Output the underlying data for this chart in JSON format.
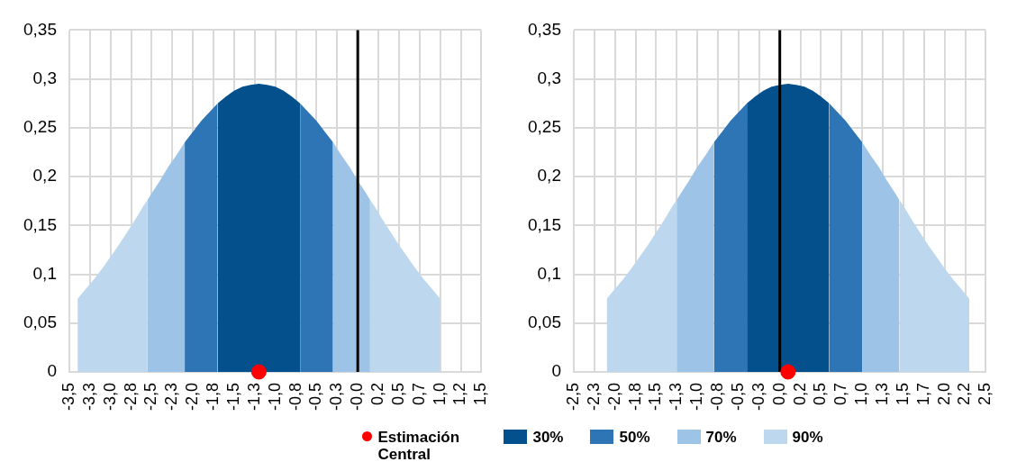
{
  "chart_data": [
    {
      "type": "area",
      "xlim": [
        -3.5,
        1.5
      ],
      "xticks": [
        {
          "value": -3.5,
          "label": "-3,5"
        },
        {
          "value": -3.25,
          "label": "-3,3"
        },
        {
          "value": -3,
          "label": "-3,0"
        },
        {
          "value": -2.75,
          "label": "-2,8"
        },
        {
          "value": -2.5,
          "label": "-2,5"
        },
        {
          "value": -2.25,
          "label": "-2,3"
        },
        {
          "value": -2,
          "label": "-2,0"
        },
        {
          "value": -1.75,
          "label": "-1,8"
        },
        {
          "value": -1.5,
          "label": "-1,5"
        },
        {
          "value": -1.25,
          "label": "-1,3"
        },
        {
          "value": -1,
          "label": "-1,0"
        },
        {
          "value": -0.75,
          "label": "-0,8"
        },
        {
          "value": -0.5,
          "label": "-0,5"
        },
        {
          "value": -0.25,
          "label": "-0,3"
        },
        {
          "value": 0,
          "label": "-0,0"
        },
        {
          "value": 0.25,
          "label": "0,2"
        },
        {
          "value": 0.5,
          "label": "0,5"
        },
        {
          "value": 0.75,
          "label": "0,7"
        },
        {
          "value": 1,
          "label": "1,0"
        },
        {
          "value": 1.25,
          "label": "1,2"
        },
        {
          "value": 1.5,
          "label": "1,5"
        }
      ],
      "ylim": [
        0,
        0.35
      ],
      "yticks": [
        0,
        {
          "value": 0.05,
          "label": "0,05"
        },
        {
          "value": 0.1,
          "label": "0,1"
        },
        {
          "value": 0.15,
          "label": "0,15"
        },
        {
          "value": 0.2,
          "label": "0,2"
        },
        {
          "value": 0.25,
          "label": "0,25"
        },
        {
          "value": 0.3,
          "label": "0,3"
        },
        {
          "value": 0.35,
          "label": "0,35"
        }
      ],
      "grid": true,
      "legend": "bottom",
      "ref_lines": [
        {
          "axis": "x",
          "value": 0,
          "color": "#000000"
        }
      ],
      "series": [
        {
          "name": "30%",
          "color": "#03508c",
          "x": [
            -1.7,
            -1.6,
            -1.5,
            -1.4,
            -1.3,
            -1.2,
            -1.1,
            -1.0,
            -0.9,
            -0.8,
            -0.7
          ],
          "values": [
            0.275,
            0.282,
            0.288,
            0.292,
            0.294,
            0.295,
            0.294,
            0.292,
            0.288,
            0.282,
            0.275
          ]
        },
        {
          "name": "50%",
          "color": "#2e75b5",
          "x": [
            -2.1,
            -2.0,
            -1.9,
            -1.8,
            -1.7,
            -1.2,
            -0.7,
            -0.6,
            -0.5,
            -0.4,
            -0.3
          ],
          "values": [
            0.235,
            0.246,
            0.257,
            0.266,
            0.275,
            null,
            0.275,
            0.266,
            0.257,
            0.246,
            0.235
          ]
        },
        {
          "name": "70%",
          "color": "#9dc3e6",
          "x": [
            -2.55,
            -2.5,
            -2.4,
            -2.3,
            -2.2,
            -2.1,
            -1.2,
            -0.3,
            -0.2,
            -0.1,
            0.0,
            0.1,
            0.15
          ],
          "values": [
            0.176,
            0.183,
            0.196,
            0.21,
            0.222,
            0.235,
            null,
            0.235,
            0.222,
            0.21,
            0.196,
            0.183,
            0.176
          ]
        },
        {
          "name": "90%",
          "color": "#bdd7ee",
          "x": [
            -3.4,
            -3.3,
            -3.2,
            -3.1,
            -3.0,
            -2.9,
            -2.8,
            -2.7,
            -2.6,
            -2.55,
            -1.2,
            0.15,
            0.2,
            0.3,
            0.4,
            0.5,
            0.6,
            0.7,
            0.8,
            0.9,
            1.0
          ],
          "values": [
            0.075,
            0.085,
            0.095,
            0.106,
            0.118,
            0.13,
            0.143,
            0.156,
            0.17,
            0.176,
            null,
            0.176,
            0.17,
            0.156,
            0.143,
            0.13,
            0.118,
            0.106,
            0.095,
            0.085,
            0.075
          ]
        },
        {
          "name": "Estimación Central",
          "type": "scatter",
          "color": "#ff0000",
          "x": [
            -1.2
          ],
          "values": [
            0
          ]
        }
      ]
    },
    {
      "type": "area",
      "xlim": [
        -2.5,
        2.5
      ],
      "xticks": [
        {
          "value": -2.5,
          "label": "-2,5"
        },
        {
          "value": -2.25,
          "label": "-2,3"
        },
        {
          "value": -2,
          "label": "-2,0"
        },
        {
          "value": -1.75,
          "label": "-1,8"
        },
        {
          "value": -1.5,
          "label": "-1,5"
        },
        {
          "value": -1.25,
          "label": "-1,3"
        },
        {
          "value": -1,
          "label": "-1,0"
        },
        {
          "value": -0.75,
          "label": "-0,8"
        },
        {
          "value": -0.5,
          "label": "-0,5"
        },
        {
          "value": -0.25,
          "label": "-0,3"
        },
        {
          "value": 0,
          "label": "0,0"
        },
        {
          "value": 0.25,
          "label": "0,2"
        },
        {
          "value": 0.5,
          "label": "0,5"
        },
        {
          "value": 0.75,
          "label": "0,7"
        },
        {
          "value": 1,
          "label": "1,0"
        },
        {
          "value": 1.25,
          "label": "1,3"
        },
        {
          "value": 1.5,
          "label": "1,5"
        },
        {
          "value": 1.75,
          "label": "1,7"
        },
        {
          "value": 2,
          "label": "2,0"
        },
        {
          "value": 2.25,
          "label": "2,2"
        },
        {
          "value": 2.5,
          "label": "2,5"
        }
      ],
      "ylim": [
        0,
        0.35
      ],
      "yticks": [
        0,
        {
          "value": 0.05,
          "label": "0,05"
        },
        {
          "value": 0.1,
          "label": "0,1"
        },
        {
          "value": 0.15,
          "label": "0,15"
        },
        {
          "value": 0.2,
          "label": "0,2"
        },
        {
          "value": 0.25,
          "label": "0,25"
        },
        {
          "value": 0.3,
          "label": "0,3"
        },
        {
          "value": 0.35,
          "label": "0,35"
        }
      ],
      "grid": true,
      "ref_lines": [
        {
          "axis": "x",
          "value": 0,
          "color": "#000000"
        }
      ],
      "series": [
        {
          "color": "#03508c",
          "x": [
            -0.4,
            -0.3,
            -0.2,
            -0.1,
            0.0,
            0.1,
            0.2,
            0.3,
            0.4,
            0.5,
            0.6
          ],
          "values": [
            0.275,
            0.282,
            0.288,
            0.292,
            0.294,
            0.295,
            0.294,
            0.292,
            0.288,
            0.282,
            0.275
          ]
        },
        {
          "color": "#2e75b5",
          "x": [
            -0.8,
            -0.7,
            -0.6,
            -0.5,
            -0.4,
            0.1,
            0.6,
            0.7,
            0.8,
            0.9,
            1.0
          ],
          "values": [
            0.235,
            0.246,
            0.257,
            0.266,
            0.275,
            null,
            0.275,
            0.266,
            0.257,
            0.246,
            0.235
          ]
        },
        {
          "color": "#9dc3e6",
          "x": [
            -1.25,
            -1.2,
            -1.1,
            -1.0,
            -0.9,
            -0.8,
            0.1,
            1.0,
            1.1,
            1.2,
            1.3,
            1.4,
            1.45
          ],
          "values": [
            0.176,
            0.183,
            0.196,
            0.21,
            0.222,
            0.235,
            null,
            0.235,
            0.222,
            0.21,
            0.196,
            0.183,
            0.176
          ]
        },
        {
          "color": "#bdd7ee",
          "x": [
            -2.1,
            -2.0,
            -1.9,
            -1.8,
            -1.7,
            -1.6,
            -1.5,
            -1.4,
            -1.3,
            -1.25,
            0.1,
            1.45,
            1.5,
            1.6,
            1.7,
            1.8,
            1.9,
            2.0,
            2.1,
            2.2,
            2.3
          ],
          "values": [
            0.075,
            0.085,
            0.095,
            0.106,
            0.118,
            0.13,
            0.143,
            0.156,
            0.17,
            0.176,
            null,
            0.176,
            0.17,
            0.156,
            0.143,
            0.13,
            0.118,
            0.106,
            0.095,
            0.085,
            0.075
          ]
        },
        {
          "type": "scatter",
          "color": "#ff0000",
          "x": [
            0.1
          ],
          "values": [
            0
          ]
        }
      ]
    }
  ]
}
